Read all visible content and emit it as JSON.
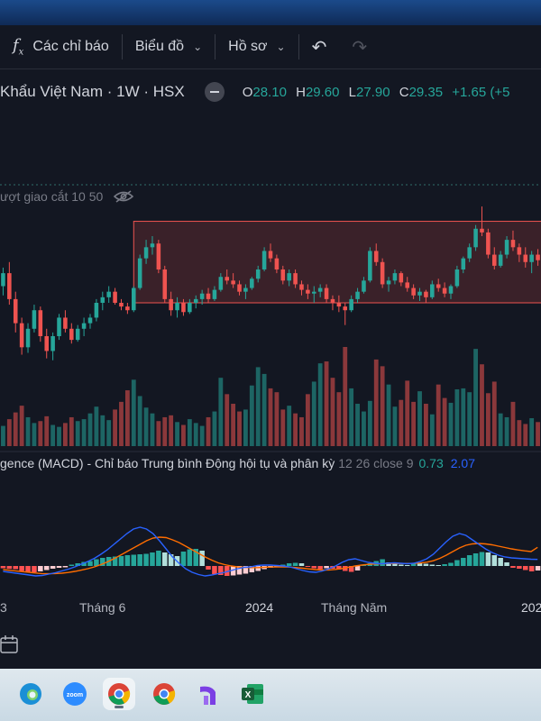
{
  "toolbar": {
    "indicators_label": "Các chỉ báo",
    "chart_label": "Biểu đồ",
    "profile_label": "Hồ sơ"
  },
  "symbol": {
    "title": "Khẩu Việt Nam · 1W · HSX",
    "ohlc": {
      "o_key": "O",
      "o": "28.10",
      "h_key": "H",
      "h": "29.60",
      "l_key": "L",
      "l": "27.90",
      "c_key": "C",
      "c": "29.35",
      "chg": "+1.65 (+5"
    }
  },
  "indicator_ma": {
    "label": "ượt giao cắt 10 50"
  },
  "indicator_macd": {
    "label": "gence (MACD) - Chỉ báo Trung bình Động hội tụ và phân kỳ",
    "params": "12 26 close 9",
    "value1": "0.73",
    "value2": "2.07"
  },
  "x_axis": {
    "labels": [
      "3",
      "Tháng 6",
      "2024",
      "Tháng Năm",
      "202"
    ]
  },
  "colors": {
    "up": "#26a69a",
    "down": "#ef5350",
    "background": "#131722",
    "macd_line": "#2962ff",
    "signal_line": "#ff6d00"
  },
  "taskbar": {
    "apps": [
      {
        "name": "edge-icon",
        "label": "Edge"
      },
      {
        "name": "zoom-icon",
        "label": "zoom"
      },
      {
        "name": "chrome-icon",
        "label": "Chrome"
      },
      {
        "name": "chrome-icon",
        "label": "Chrome"
      },
      {
        "name": "app-icon",
        "label": ""
      },
      {
        "name": "excel-icon",
        "label": "X"
      }
    ]
  },
  "chart_data": {
    "type": "candlestick",
    "timeframe": "1W",
    "candles": [
      [
        28.5,
        29.5,
        28,
        29.2
      ],
      [
        29.2,
        29.8,
        27.5,
        27.8
      ],
      [
        27.8,
        28.2,
        26,
        26.5
      ],
      [
        26.5,
        26.8,
        24.8,
        25.2
      ],
      [
        25.2,
        26.5,
        24.9,
        26.2
      ],
      [
        26.2,
        27.5,
        26,
        27.2
      ],
      [
        27.2,
        27.4,
        25.5,
        25.8
      ],
      [
        25.8,
        26.2,
        24.6,
        25
      ],
      [
        25,
        26,
        24.5,
        25.8
      ],
      [
        25.8,
        27,
        25.6,
        26.8
      ],
      [
        26.8,
        27.2,
        26,
        26.2
      ],
      [
        26.2,
        26.5,
        25.4,
        25.6
      ],
      [
        25.6,
        26.4,
        25.5,
        26.2
      ],
      [
        26.2,
        26.8,
        25.8,
        26.5
      ],
      [
        26.5,
        27,
        26.2,
        26.8
      ],
      [
        26.8,
        27.8,
        26.6,
        27.6
      ],
      [
        27.6,
        28.2,
        27.2,
        27.9
      ],
      [
        27.9,
        28.5,
        27.6,
        28.2
      ],
      [
        28.2,
        28.4,
        27.5,
        27.6
      ],
      [
        27.6,
        27.8,
        27.2,
        27.4
      ],
      [
        27.4,
        27.6,
        27,
        27.2
      ],
      [
        27.2,
        28.5,
        27.1,
        28.4
      ],
      [
        28.4,
        30.2,
        28.3,
        30
      ],
      [
        30,
        31,
        29.7,
        30.6
      ],
      [
        30.6,
        31.2,
        30.2,
        30.8
      ],
      [
        30.8,
        31,
        29.2,
        29.4
      ],
      [
        29.4,
        29.6,
        27.6,
        27.8
      ],
      [
        27.8,
        28.2,
        26.9,
        27.2
      ],
      [
        27.2,
        27.9,
        26.8,
        27.6
      ],
      [
        27.6,
        27.8,
        26.9,
        27.1
      ],
      [
        27.1,
        27.8,
        27,
        27.6
      ],
      [
        27.6,
        28,
        27.3,
        27.8
      ],
      [
        27.8,
        28.3,
        27.5,
        28.1
      ],
      [
        28.1,
        28.4,
        27.6,
        27.8
      ],
      [
        27.8,
        28.5,
        27.7,
        28.3
      ],
      [
        28.3,
        29.2,
        28.2,
        29
      ],
      [
        29,
        29.4,
        28.6,
        28.8
      ],
      [
        28.8,
        29.2,
        28.4,
        28.6
      ],
      [
        28.6,
        28.8,
        28,
        28.2
      ],
      [
        28.2,
        28.6,
        27.8,
        28.4
      ],
      [
        28.4,
        29,
        28.3,
        28.9
      ],
      [
        28.9,
        29.6,
        28.7,
        29.4
      ],
      [
        29.4,
        30.6,
        29.3,
        30.4
      ],
      [
        30.4,
        30.8,
        29.8,
        30
      ],
      [
        30,
        30.2,
        29.2,
        29.4
      ],
      [
        29.4,
        29.6,
        28.6,
        28.8
      ],
      [
        28.8,
        29.4,
        28.5,
        29.2
      ],
      [
        29.2,
        29.4,
        28.4,
        28.6
      ],
      [
        28.6,
        28.8,
        28,
        28.3
      ],
      [
        28.3,
        28.6,
        27.8,
        28.1
      ],
      [
        28.1,
        28.5,
        27.6,
        28.2
      ],
      [
        28.2,
        28.6,
        27.9,
        28.4
      ],
      [
        28.4,
        28.6,
        27.6,
        27.8
      ],
      [
        27.8,
        28,
        27.2,
        27.6
      ],
      [
        27.6,
        28,
        27.1,
        27.4
      ],
      [
        27.4,
        27.6,
        26.4,
        27.2
      ],
      [
        27.2,
        28,
        27.1,
        27.8
      ],
      [
        27.8,
        28.4,
        27.6,
        28.2
      ],
      [
        28.2,
        29,
        28.1,
        28.8
      ],
      [
        28.8,
        30.6,
        28.7,
        30.4
      ],
      [
        30.4,
        30.8,
        29.6,
        29.8
      ],
      [
        29.8,
        30,
        28.4,
        28.6
      ],
      [
        28.6,
        29,
        28.2,
        28.8
      ],
      [
        28.8,
        29.4,
        28.6,
        29.2
      ],
      [
        29.2,
        29.3,
        28.5,
        28.7
      ],
      [
        28.7,
        29,
        28.2,
        28.4
      ],
      [
        28.4,
        28.6,
        27.8,
        28
      ],
      [
        28,
        28.4,
        27.7,
        28.2
      ],
      [
        28.2,
        28.3,
        27.6,
        27.9
      ],
      [
        27.9,
        28.8,
        27.8,
        28.6
      ],
      [
        28.6,
        28.9,
        28.2,
        28.4
      ],
      [
        28.4,
        28.7,
        27.9,
        28.1
      ],
      [
        28.1,
        28.6,
        27.8,
        28.5
      ],
      [
        28.5,
        29.6,
        28.4,
        29.4
      ],
      [
        29.4,
        30.1,
        29.2,
        30
      ],
      [
        30,
        30.8,
        29.8,
        30.6
      ],
      [
        30.6,
        31.8,
        30.4,
        31.6
      ],
      [
        31.6,
        32.8,
        31.2,
        31.4
      ],
      [
        31.4,
        31.6,
        30,
        30.2
      ],
      [
        30.2,
        30.6,
        29.4,
        29.6
      ],
      [
        29.6,
        30.4,
        29.5,
        30.2
      ],
      [
        30.2,
        31.2,
        30,
        31
      ],
      [
        31,
        31.5,
        30.4,
        30.6
      ],
      [
        30.6,
        30.8,
        29.8,
        30.2
      ],
      [
        30.2,
        30.6,
        29.5,
        29.8
      ],
      [
        29.8,
        30.4,
        29.2,
        30.2
      ],
      [
        30.2,
        30.5,
        29.6,
        29.9
      ]
    ],
    "price_range": [
      24,
      33
    ],
    "highlight_range": {
      "from_index": 22,
      "price_low": 27.6,
      "price_high": 32.0
    },
    "volume": [
      2.1,
      2.8,
      3.5,
      4.2,
      3.0,
      2.4,
      2.6,
      3.1,
      2.2,
      2.0,
      2.4,
      3.0,
      2.6,
      2.8,
      3.4,
      4.1,
      3.2,
      2.7,
      3.8,
      4.6,
      5.8,
      6.9,
      5.2,
      4.0,
      3.4,
      2.6,
      3.0,
      3.2,
      2.5,
      2.2,
      2.8,
      2.4,
      2.1,
      3.0,
      3.6,
      7.1,
      5.4,
      4.4,
      3.6,
      3.8,
      6.3,
      8.2,
      7.5,
      6.0,
      5.6,
      3.8,
      4.2,
      3.4,
      3.0,
      5.4,
      6.7,
      8.6,
      8.8,
      7.1,
      5.6,
      10.3,
      6.0,
      4.4,
      3.6,
      4.7,
      9.0,
      8.3,
      6.4,
      4.1,
      4.8,
      6.8,
      4.6,
      5.7,
      4.4,
      3.3,
      6.4,
      5.0,
      4.5,
      5.9,
      6.0,
      5.6,
      10.1,
      8.5,
      5.5,
      6.7,
      3.4,
      3.0,
      4.6,
      2.7,
      2.3,
      2.9,
      2.5
    ],
    "volume_colors": "up_down",
    "macd_hist": [
      -0.25,
      -0.32,
      -0.35,
      -0.55,
      -0.65,
      -0.7,
      -0.6,
      -0.45,
      -0.3,
      -0.2,
      -0.15,
      0.15,
      0.3,
      0.45,
      0.55,
      0.75,
      0.9,
      1.0,
      1.05,
      1.1,
      1.2,
      1.25,
      1.3,
      1.35,
      1.5,
      1.7,
      1.5,
      1.3,
      1.1,
      1.6,
      1.85,
      1.9,
      1.7,
      -0.4,
      -0.9,
      -1.0,
      -1.1,
      -1.05,
      -0.95,
      -0.85,
      -0.7,
      -0.55,
      -0.35,
      -0.2,
      -0.1,
      0.15,
      0.3,
      0.35,
      0.3,
      -0.1,
      -0.25,
      -0.35,
      -0.25,
      -0.3,
      -0.4,
      -0.55,
      -0.65,
      -0.5,
      0.15,
      0.3,
      0.55,
      0.75,
      0.4,
      0.25,
      0.15,
      0.1,
      0.35,
      0.3,
      0.25,
      0.15,
      0.1,
      0.2,
      0.35,
      0.65,
      0.9,
      1.2,
      1.4,
      1.55,
      1.5,
      1.2,
      0.9,
      0.4,
      -0.2,
      -0.3,
      -0.45,
      -0.6,
      -0.5
    ],
    "macd_line": [
      -0.6,
      -0.7,
      -0.8,
      -0.9,
      -1.0,
      -1.1,
      -1.05,
      -0.9,
      -0.75,
      -0.55,
      -0.35,
      -0.1,
      0.2,
      0.5,
      0.85,
      1.3,
      1.8,
      2.4,
      3.0,
      3.6,
      4.1,
      4.3,
      4.1,
      3.6,
      2.8,
      1.9,
      1.0,
      0.3,
      -0.3,
      -0.7,
      -0.95,
      -1.1,
      -1.0,
      -0.85,
      -0.7,
      -0.5,
      -0.3,
      -0.15,
      -0.1,
      0.05,
      0.1,
      0.1,
      0.05,
      0.0,
      -0.1,
      -0.3,
      -0.5,
      -0.65,
      -0.7,
      -0.55,
      -0.3,
      0.0,
      0.4,
      0.7,
      0.8,
      0.6,
      0.4,
      0.3,
      0.25,
      0.3,
      0.35,
      0.3,
      0.25,
      0.3,
      0.5,
      0.8,
      1.3,
      2.0,
      2.7,
      3.3,
      3.6,
      3.4,
      2.9,
      2.4,
      1.9,
      1.5,
      1.2,
      1.0,
      0.9,
      0.85,
      0.8,
      0.75,
      0.73
    ],
    "signal_line": [
      -0.4,
      -0.48,
      -0.56,
      -0.63,
      -0.7,
      -0.78,
      -0.84,
      -0.86,
      -0.84,
      -0.8,
      -0.72,
      -0.6,
      -0.46,
      -0.3,
      -0.1,
      0.15,
      0.45,
      0.8,
      1.2,
      1.6,
      2.0,
      2.4,
      2.8,
      3.1,
      3.2,
      3.15,
      2.9,
      2.6,
      2.2,
      1.8,
      1.4,
      1.0,
      0.65,
      0.35,
      0.15,
      0.0,
      -0.1,
      -0.15,
      -0.18,
      -0.18,
      -0.15,
      -0.12,
      -0.1,
      -0.1,
      -0.12,
      -0.18,
      -0.25,
      -0.33,
      -0.4,
      -0.45,
      -0.44,
      -0.38,
      -0.28,
      -0.15,
      0.0,
      0.1,
      0.18,
      0.22,
      0.25,
      0.27,
      0.28,
      0.28,
      0.28,
      0.29,
      0.33,
      0.42,
      0.58,
      0.85,
      1.2,
      1.6,
      2.0,
      2.3,
      2.45,
      2.5,
      2.45,
      2.35,
      2.2,
      2.05,
      1.9,
      1.78,
      1.68,
      1.6,
      2.07
    ]
  }
}
